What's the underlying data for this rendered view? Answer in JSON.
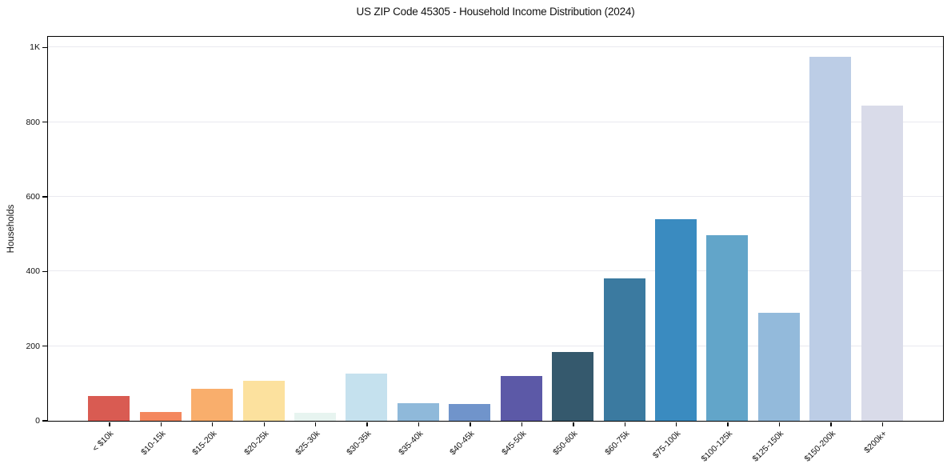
{
  "title": "US ZIP Code 45305 - Household Income Distribution (2024)",
  "colors": {
    "background": "#ffffff",
    "spine": "#000000",
    "grid": "#e9e9f0",
    "text": "#111111"
  },
  "chart_data": {
    "type": "bar",
    "title": "US ZIP Code 45305 - Household Income Distribution (2024)",
    "xlabel": "",
    "ylabel": "Households",
    "categories": [
      "< $10k",
      "$10-15k",
      "$15-20k",
      "$20-25k",
      "$25-30k",
      "$30-35k",
      "$35-40k",
      "$40-45k",
      "$45-50k",
      "$50-60k",
      "$60-75k",
      "$75-100k",
      "$100-125k",
      "$125-150k",
      "$150-200k",
      "$200k+"
    ],
    "values": [
      66,
      23,
      86,
      107,
      22,
      127,
      47,
      46,
      121,
      185,
      381,
      540,
      497,
      289,
      975,
      845
    ],
    "bar_colors": [
      "#d95b52",
      "#f4875e",
      "#f9ae6c",
      "#fce19e",
      "#e7f4f0",
      "#c5e1ee",
      "#8fb9da",
      "#7094cb",
      "#5c59a7",
      "#35596d",
      "#3b7aa0",
      "#3a8bc0",
      "#62a5c9",
      "#93badb",
      "#bccde6",
      "#d9dbe9"
    ],
    "ylim": [
      0,
      1027
    ],
    "yticks": [
      {
        "value": 0,
        "label": "0"
      },
      {
        "value": 200,
        "label": "200"
      },
      {
        "value": 400,
        "label": "400"
      },
      {
        "value": 600,
        "label": "600"
      },
      {
        "value": 800,
        "label": "800"
      },
      {
        "value": 1000,
        "label": "1K"
      }
    ],
    "grid": "horizontal",
    "legend": "none"
  }
}
